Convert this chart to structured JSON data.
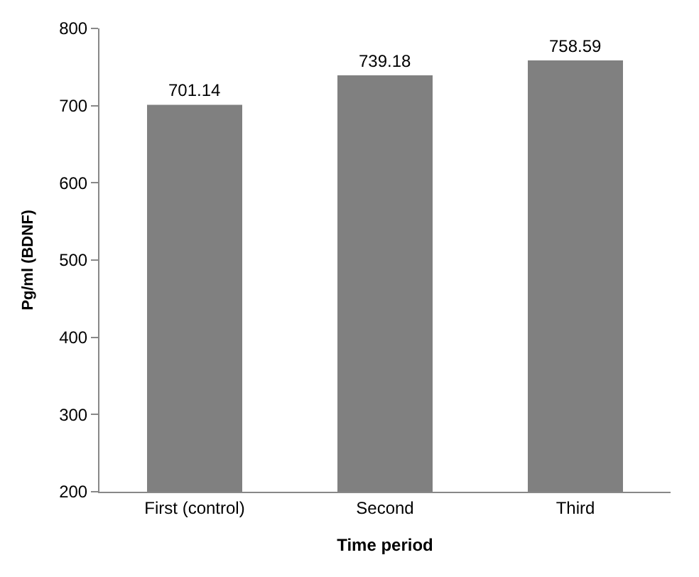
{
  "chart_data": {
    "type": "bar",
    "xlabel": "Time period",
    "ylabel": "Pg/ml (BDNF)",
    "categories": [
      "First (control)",
      "Second",
      "Third"
    ],
    "values": [
      701.14,
      739.18,
      758.59
    ],
    "color": "#808080",
    "ylim": [
      200,
      800
    ],
    "yticks": [
      200,
      300,
      400,
      500,
      600,
      700,
      800
    ],
    "grid": false,
    "data_labels": true
  }
}
